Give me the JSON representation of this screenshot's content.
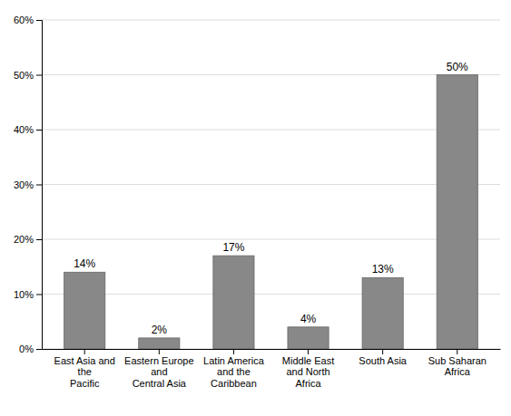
{
  "chart_data": {
    "type": "bar",
    "categories": [
      "East Asia and the\nPacific",
      "Eastern Europe and\nCentral Asia",
      "Latin America and the\nCaribbean",
      "Middle East and North\nAfrica",
      "South Asia",
      "Sub Saharan Africa"
    ],
    "values": [
      14,
      2,
      17,
      4,
      13,
      50
    ],
    "value_labels": [
      "14%",
      "2%",
      "17%",
      "4%",
      "13%",
      "50%"
    ],
    "data_labels": true,
    "color": "#888888",
    "ylim": [
      0,
      60
    ],
    "yticks": [
      {
        "value": 0,
        "label": "0%"
      },
      {
        "value": 10,
        "label": "10%"
      },
      {
        "value": 20,
        "label": "20%"
      },
      {
        "value": 30,
        "label": "30%"
      },
      {
        "value": 40,
        "label": "40%"
      },
      {
        "value": 50,
        "label": "50%"
      },
      {
        "value": 60,
        "label": "60%"
      }
    ],
    "grid": true
  }
}
